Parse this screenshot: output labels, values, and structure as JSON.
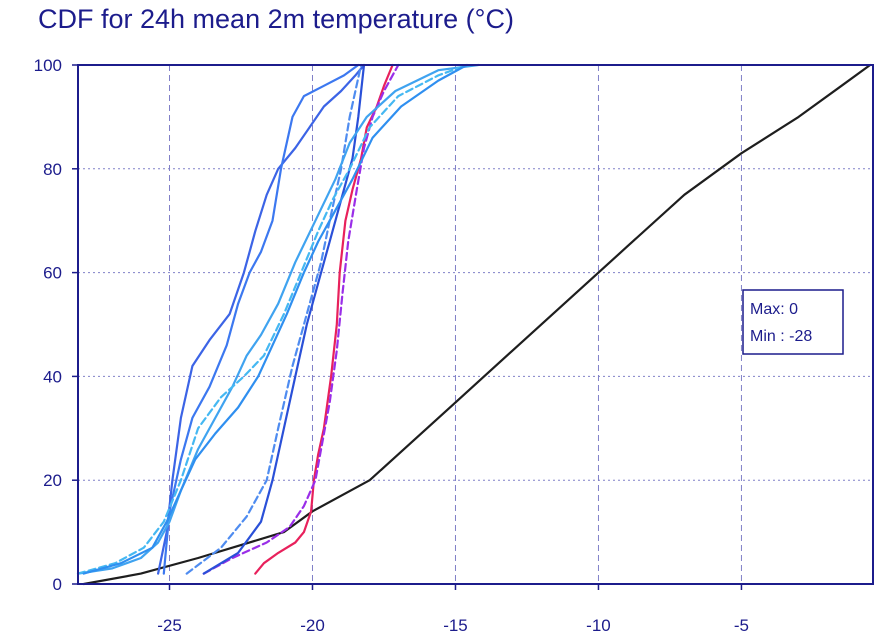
{
  "chart_data": {
    "type": "line",
    "title": "CDF for 24h mean 2m temperature (°C)",
    "xlabel": "",
    "ylabel": "",
    "xlim": [
      -28.2,
      -0.4
    ],
    "ylim": [
      0,
      100
    ],
    "x_ticks": [
      -25,
      -20,
      -15,
      -10,
      -5
    ],
    "y_ticks": [
      0,
      20,
      40,
      60,
      80,
      100
    ],
    "grid": true,
    "info_box": {
      "line1": "Max: 0",
      "line2": "Min : -28"
    },
    "series": [
      {
        "color": "#1e1e1e",
        "dash": false,
        "points": [
          [
            -28,
            0
          ],
          [
            -26,
            2
          ],
          [
            -24,
            5
          ],
          [
            -21,
            10
          ],
          [
            -20,
            14
          ],
          [
            -18,
            20
          ],
          [
            -17,
            25
          ],
          [
            -15,
            35
          ],
          [
            -13,
            45
          ],
          [
            -10,
            60
          ],
          [
            -9,
            65
          ],
          [
            -7,
            75
          ],
          [
            -5,
            83
          ],
          [
            -3,
            90
          ],
          [
            -1.5,
            96
          ],
          [
            -0.5,
            100
          ]
        ]
      },
      {
        "color": "#e8215c",
        "dash": false,
        "points": [
          [
            -22,
            2
          ],
          [
            -21.7,
            4
          ],
          [
            -21.2,
            6
          ],
          [
            -20.6,
            8
          ],
          [
            -20.3,
            10
          ],
          [
            -20.05,
            14
          ],
          [
            -19.95,
            20
          ],
          [
            -19.8,
            25
          ],
          [
            -19.6,
            30
          ],
          [
            -19.35,
            40
          ],
          [
            -19.15,
            50
          ],
          [
            -19.05,
            60
          ],
          [
            -18.85,
            70
          ],
          [
            -18.6,
            76
          ],
          [
            -18.3,
            82
          ],
          [
            -18.1,
            88
          ],
          [
            -17.75,
            92
          ],
          [
            -17.5,
            96
          ],
          [
            -17.2,
            100
          ]
        ]
      },
      {
        "color": "#9a2ee8",
        "dash": true,
        "points": [
          [
            -23.8,
            2
          ],
          [
            -22.8,
            5
          ],
          [
            -21.6,
            8
          ],
          [
            -20.8,
            11
          ],
          [
            -20.3,
            15
          ],
          [
            -19.9,
            20
          ],
          [
            -19.7,
            26
          ],
          [
            -19.4,
            35
          ],
          [
            -19.15,
            45
          ],
          [
            -18.95,
            56
          ],
          [
            -18.75,
            66
          ],
          [
            -18.45,
            76
          ],
          [
            -18.2,
            84
          ],
          [
            -17.9,
            90
          ],
          [
            -17.5,
            95
          ],
          [
            -17.0,
            100
          ]
        ]
      },
      {
        "color": "#3c64e6",
        "dash": false,
        "points": [
          [
            -25.4,
            2
          ],
          [
            -25.1,
            10
          ],
          [
            -24.9,
            20
          ],
          [
            -24.6,
            32
          ],
          [
            -24.2,
            42
          ],
          [
            -23.6,
            47
          ],
          [
            -22.9,
            52
          ],
          [
            -22.4,
            60
          ],
          [
            -22.0,
            68
          ],
          [
            -21.6,
            75
          ],
          [
            -21.2,
            80
          ],
          [
            -20.6,
            84
          ],
          [
            -20.1,
            88
          ],
          [
            -19.6,
            92
          ],
          [
            -19.0,
            95
          ],
          [
            -18.5,
            98
          ],
          [
            -18.2,
            100
          ]
        ]
      },
      {
        "color": "#3c78f0",
        "dash": false,
        "points": [
          [
            -25.2,
            2
          ],
          [
            -25.0,
            14
          ],
          [
            -24.6,
            24
          ],
          [
            -24.2,
            32
          ],
          [
            -23.6,
            38
          ],
          [
            -23.0,
            46
          ],
          [
            -22.6,
            54
          ],
          [
            -22.2,
            60
          ],
          [
            -21.8,
            64
          ],
          [
            -21.4,
            70
          ],
          [
            -21.1,
            80
          ],
          [
            -20.7,
            90
          ],
          [
            -20.3,
            94
          ],
          [
            -19.6,
            96
          ],
          [
            -18.9,
            98
          ],
          [
            -18.4,
            100
          ]
        ]
      },
      {
        "color": "#2a50d8",
        "dash": false,
        "points": [
          [
            -23.8,
            2
          ],
          [
            -22.6,
            6
          ],
          [
            -21.8,
            12
          ],
          [
            -21.4,
            20
          ],
          [
            -21.0,
            30
          ],
          [
            -20.6,
            40
          ],
          [
            -20.2,
            50
          ],
          [
            -19.8,
            58
          ],
          [
            -19.4,
            66
          ],
          [
            -19.0,
            74
          ],
          [
            -18.6,
            82
          ],
          [
            -18.4,
            90
          ],
          [
            -18.2,
            100
          ]
        ]
      },
      {
        "color": "#4f8cf0",
        "dash": true,
        "points": [
          [
            -24.4,
            2
          ],
          [
            -23.2,
            7
          ],
          [
            -22.3,
            13
          ],
          [
            -21.6,
            20
          ],
          [
            -21.2,
            30
          ],
          [
            -20.7,
            42
          ],
          [
            -20.2,
            52
          ],
          [
            -19.7,
            62
          ],
          [
            -19.4,
            70
          ],
          [
            -19.0,
            80
          ],
          [
            -18.7,
            90
          ],
          [
            -18.3,
            100
          ]
        ]
      },
      {
        "color": "#3fa3f0",
        "dash": false,
        "points": [
          [
            -28.2,
            2
          ],
          [
            -27,
            3
          ],
          [
            -26,
            5
          ],
          [
            -25.4,
            8
          ],
          [
            -25.0,
            12
          ],
          [
            -24.6,
            18
          ],
          [
            -24.0,
            26
          ],
          [
            -23.4,
            32
          ],
          [
            -22.8,
            38
          ],
          [
            -22.3,
            44
          ],
          [
            -21.8,
            48
          ],
          [
            -21.2,
            54
          ],
          [
            -20.6,
            62
          ],
          [
            -19.9,
            70
          ],
          [
            -19.2,
            78
          ],
          [
            -18.7,
            85
          ],
          [
            -18.1,
            90
          ],
          [
            -17.1,
            95
          ],
          [
            -15.6,
            99
          ],
          [
            -14.2,
            100
          ]
        ]
      },
      {
        "color": "#45b8f2",
        "dash": true,
        "points": [
          [
            -28.2,
            2
          ],
          [
            -26.9,
            4
          ],
          [
            -25.9,
            7
          ],
          [
            -25.2,
            12
          ],
          [
            -24.6,
            20
          ],
          [
            -24.0,
            30
          ],
          [
            -23.2,
            36
          ],
          [
            -22.4,
            40
          ],
          [
            -21.7,
            44
          ],
          [
            -21.0,
            52
          ],
          [
            -20.4,
            60
          ],
          [
            -19.8,
            68
          ],
          [
            -19.3,
            74
          ],
          [
            -18.7,
            80
          ],
          [
            -18.0,
            88
          ],
          [
            -17.0,
            94
          ],
          [
            -15.6,
            98
          ],
          [
            -14.6,
            100
          ]
        ]
      },
      {
        "color": "#2f8ff0",
        "dash": false,
        "points": [
          [
            -28,
            2
          ],
          [
            -26.7,
            4
          ],
          [
            -25.6,
            7
          ],
          [
            -25.1,
            12
          ],
          [
            -24.6,
            18
          ],
          [
            -24.1,
            24
          ],
          [
            -23.4,
            29
          ],
          [
            -22.6,
            34
          ],
          [
            -21.9,
            40
          ],
          [
            -21.4,
            46
          ],
          [
            -20.9,
            52
          ],
          [
            -20.3,
            60
          ],
          [
            -19.8,
            66
          ],
          [
            -19.2,
            72
          ],
          [
            -18.6,
            78
          ],
          [
            -17.9,
            86
          ],
          [
            -16.9,
            92
          ],
          [
            -15.6,
            97
          ],
          [
            -14.6,
            100
          ]
        ]
      }
    ]
  }
}
